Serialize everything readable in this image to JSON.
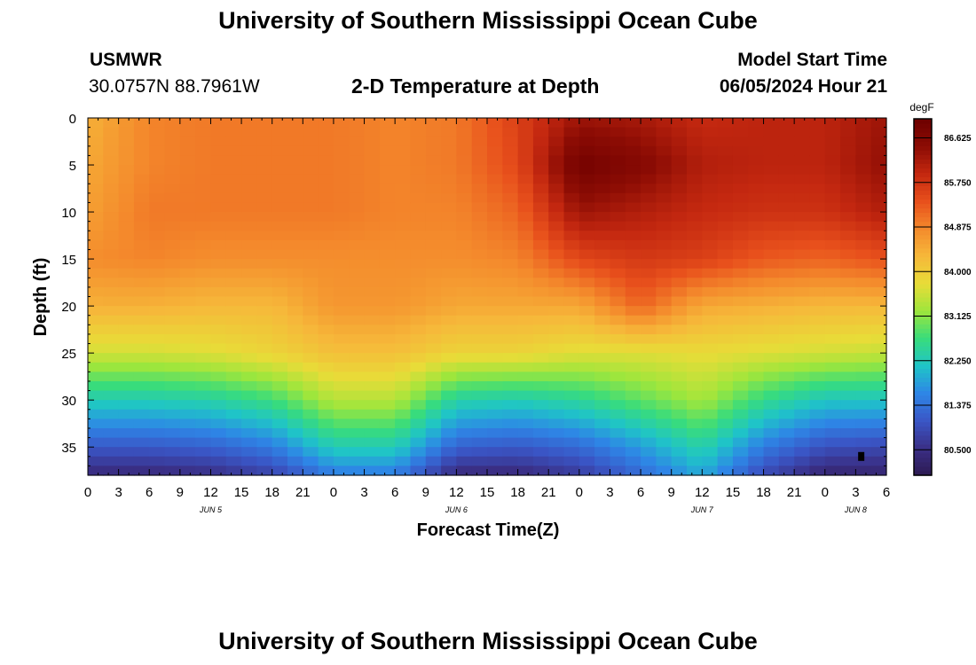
{
  "header": {
    "title": "University of Southern Mississippi Ocean Cube",
    "station": "USMWR",
    "coords": "30.0757N  88.7961W",
    "subtitle": "2-D Temperature at Depth",
    "model_start_label": "Model Start Time",
    "model_start_value": "06/05/2024 Hour 21",
    "footer_title": "University of Southern Mississippi Ocean Cube"
  },
  "colors": {
    "ramp": [
      "#2d1a52",
      "#3a2f86",
      "#3a56c6",
      "#2e86e6",
      "#1fc4c8",
      "#38dc7c",
      "#9ee63c",
      "#e8dc38",
      "#f6b83a",
      "#f48a2c",
      "#e8501c",
      "#c42810",
      "#8c0c04",
      "#6e0000"
    ]
  },
  "chart_data": {
    "type": "heatmap",
    "title": "2-D Temperature at Depth",
    "xlabel": "Forecast Time(Z)",
    "ylabel": "Depth (ft)",
    "x_unit": "hours since 06/05 00Z",
    "xlim": [
      0,
      78
    ],
    "ylim": [
      38,
      0
    ],
    "x_ticks": [
      0,
      3,
      6,
      9,
      12,
      15,
      18,
      21,
      24,
      27,
      30,
      33,
      36,
      39,
      42,
      45,
      48,
      51,
      54,
      57,
      60,
      63,
      66,
      69,
      72,
      75,
      78
    ],
    "x_tick_labels": [
      "0",
      "3",
      "6",
      "9",
      "12",
      "15",
      "18",
      "21",
      "0",
      "3",
      "6",
      "9",
      "12",
      "15",
      "18",
      "21",
      "0",
      "3",
      "6",
      "9",
      "12",
      "15",
      "18",
      "21",
      "0",
      "3",
      "6"
    ],
    "y_ticks": [
      0,
      5,
      10,
      15,
      20,
      25,
      30,
      35
    ],
    "y_tick_labels": [
      "0",
      "5",
      "10",
      "15",
      "20",
      "25",
      "30",
      "35"
    ],
    "date_labels": [
      {
        "text": "JUN 5",
        "x": 12
      },
      {
        "text": "JUN 6",
        "x": 36
      },
      {
        "text": "JUN 7",
        "x": 60
      },
      {
        "text": "JUN 8",
        "x": 75
      }
    ],
    "colorbar": {
      "unit": "degF",
      "min": 80.0,
      "max": 87.0,
      "ticks": [
        80.5,
        81.375,
        82.25,
        83.125,
        84.0,
        84.875,
        85.75,
        86.625
      ],
      "tick_labels": [
        "80.500",
        "81.375",
        "82.250",
        "83.125",
        "84.000",
        "84.875",
        "85.750",
        "86.625"
      ]
    },
    "grid": {
      "time_hours": [
        0,
        6,
        12,
        18,
        24,
        30,
        36,
        42,
        48,
        54,
        60,
        66,
        72,
        78
      ],
      "depth_ft": [
        0,
        5,
        10,
        15,
        20,
        25,
        30,
        35,
        38
      ]
    },
    "values_degF": [
      [
        84.4,
        84.9,
        85.0,
        85.0,
        85.0,
        84.9,
        85.0,
        85.6,
        86.3,
        86.2,
        85.9,
        86.0,
        86.0,
        86.3
      ],
      [
        84.5,
        84.9,
        85.0,
        85.0,
        85.0,
        84.9,
        85.0,
        85.5,
        86.9,
        86.6,
        86.1,
        86.0,
        86.0,
        86.4
      ],
      [
        84.6,
        85.0,
        85.0,
        85.0,
        85.0,
        84.9,
        84.9,
        85.2,
        86.3,
        86.1,
        85.9,
        85.8,
        85.8,
        86.1
      ],
      [
        84.8,
        84.9,
        84.8,
        84.8,
        84.8,
        84.8,
        84.8,
        84.9,
        85.5,
        85.7,
        85.6,
        85.3,
        85.2,
        85.4
      ],
      [
        84.4,
        84.4,
        84.3,
        84.3,
        84.7,
        84.7,
        84.5,
        84.5,
        84.5,
        85.2,
        84.5,
        84.4,
        84.3,
        84.3
      ],
      [
        83.6,
        83.6,
        83.7,
        83.9,
        84.2,
        84.2,
        83.9,
        83.9,
        83.7,
        83.7,
        83.8,
        83.7,
        83.6,
        83.5
      ],
      [
        82.3,
        82.3,
        82.4,
        82.7,
        83.4,
        83.4,
        82.4,
        82.3,
        82.5,
        82.9,
        83.3,
        82.6,
        82.2,
        82.2
      ],
      [
        81.1,
        81.1,
        81.2,
        81.5,
        82.3,
        82.3,
        81.2,
        81.1,
        81.3,
        81.8,
        82.4,
        81.5,
        81.0,
        80.9
      ],
      [
        80.4,
        80.4,
        80.5,
        80.8,
        81.5,
        81.5,
        80.4,
        80.4,
        80.7,
        81.3,
        81.9,
        80.9,
        80.3,
        80.3
      ]
    ],
    "marker": {
      "x": 75.5,
      "y": 36
    }
  }
}
